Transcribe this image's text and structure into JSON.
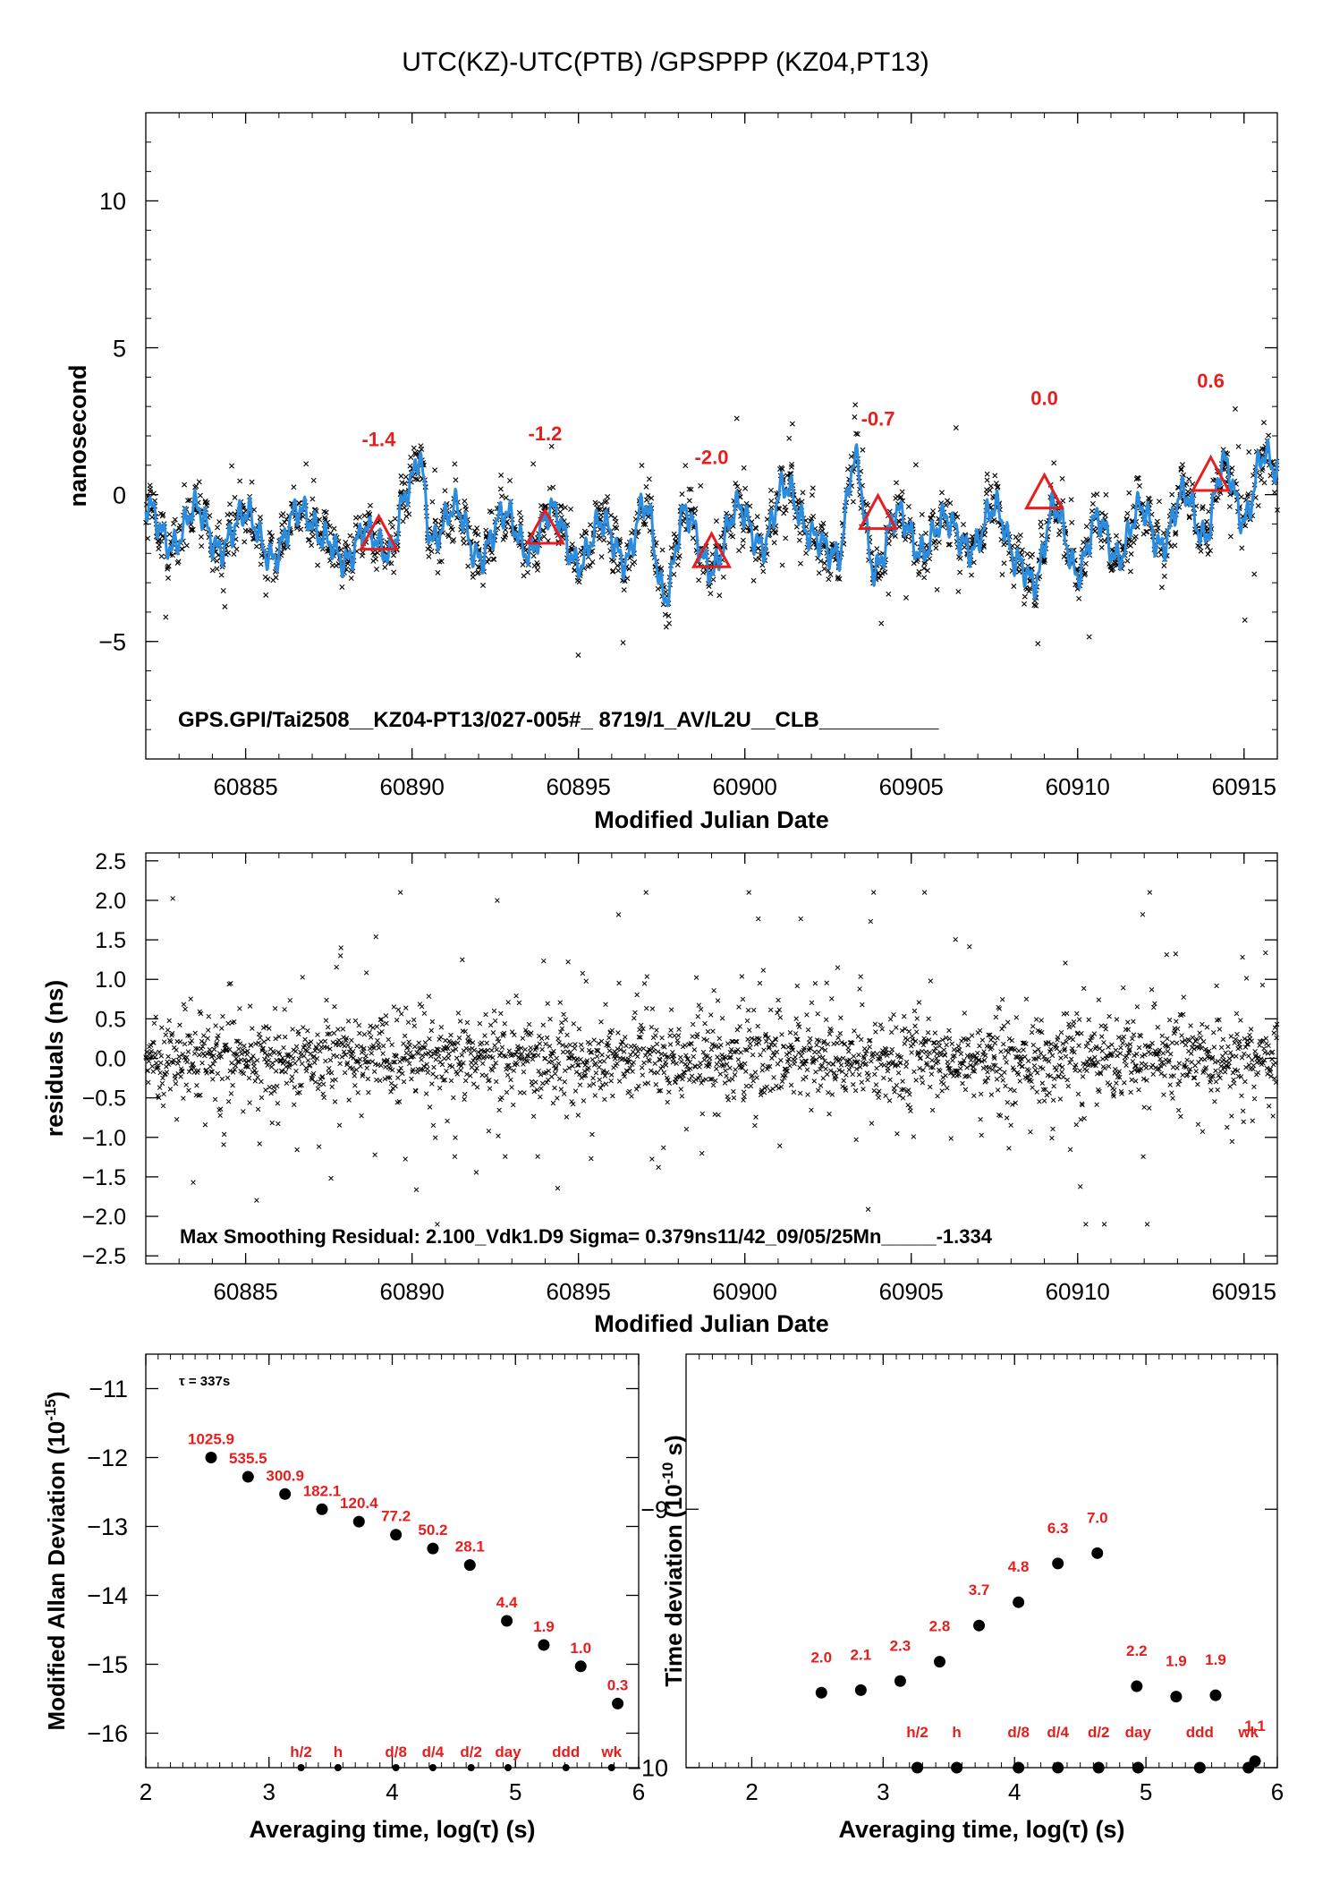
{
  "page_title": "UTC(KZ)-UTC(PTB)  /GPSPPP  (KZ04,PT13)",
  "colors": {
    "smooth": "#2a8de0",
    "marker": "#e61e1e",
    "points": "#000000"
  },
  "chart_data": [
    {
      "id": "top",
      "type": "scatter",
      "xlabel": "Modified Julian Date",
      "ylabel": "nanosecond",
      "xlim": [
        60882,
        60916
      ],
      "ylim": [
        -9,
        13
      ],
      "xticks": [
        60885,
        60890,
        60895,
        60900,
        60905,
        60910,
        60915
      ],
      "yticks": [
        -5,
        0,
        5,
        10
      ],
      "ytick_labels": [
        "−5",
        "0",
        "5",
        "10"
      ],
      "annotation": "GPS.GPI/Tai2508__KZ04-PT13/027-005#_  8719/1_AV/L2U__CLB__________",
      "triangles": [
        {
          "x": 60889,
          "y": -1.4,
          "label": "-1.4"
        },
        {
          "x": 60894,
          "y": -1.2,
          "label": "-1.2"
        },
        {
          "x": 60899,
          "y": -2.0,
          "label": "-2.0"
        },
        {
          "x": 60904,
          "y": -0.7,
          "label": "-0.7"
        },
        {
          "x": 60909,
          "y": 0.0,
          "label": "0.0"
        },
        {
          "x": 60914,
          "y": 0.6,
          "label": "0.6"
        }
      ],
      "smooth_anchors": [
        [
          60882,
          -0.3
        ],
        [
          60882.8,
          -1.8
        ],
        [
          60883.5,
          -0.4
        ],
        [
          60884.2,
          -1.9
        ],
        [
          60885,
          -0.6
        ],
        [
          60885.8,
          -2.2
        ],
        [
          60886.6,
          -0.5
        ],
        [
          60887.4,
          -1.5
        ],
        [
          60888,
          -2.3
        ],
        [
          60888.6,
          -1.2
        ],
        [
          60889.3,
          -2.0
        ],
        [
          60889.9,
          0.2
        ],
        [
          60890.2,
          1.3
        ],
        [
          60890.6,
          -1.6
        ],
        [
          60891.3,
          -0.4
        ],
        [
          60892,
          -2.2
        ],
        [
          60892.8,
          -0.6
        ],
        [
          60893.5,
          -2.0
        ],
        [
          60894.2,
          -0.5
        ],
        [
          60895,
          -2.4
        ],
        [
          60895.7,
          -0.9
        ],
        [
          60896.4,
          -2.3
        ],
        [
          60897,
          -0.3
        ],
        [
          60897.6,
          -3.5
        ],
        [
          60898.2,
          -0.6
        ],
        [
          60899,
          -2.6
        ],
        [
          60899.8,
          -0.4
        ],
        [
          60900.5,
          -1.8
        ],
        [
          60901.2,
          0.3
        ],
        [
          60902,
          -1.4
        ],
        [
          60902.8,
          -2.1
        ],
        [
          60903.3,
          1.2
        ],
        [
          60903.9,
          -2.6
        ],
        [
          60904.6,
          -0.6
        ],
        [
          60905.3,
          -2.0
        ],
        [
          60906,
          -0.8
        ],
        [
          60906.8,
          -1.9
        ],
        [
          60907.5,
          -0.4
        ],
        [
          60908.2,
          -2.3
        ],
        [
          60908.7,
          -3.0
        ],
        [
          60909.3,
          -0.4
        ],
        [
          60910,
          -2.7
        ],
        [
          60910.6,
          -0.8
        ],
        [
          60911.2,
          -2.2
        ],
        [
          60911.9,
          -0.4
        ],
        [
          60912.5,
          -1.8
        ],
        [
          60913.2,
          0.1
        ],
        [
          60913.8,
          -1.5
        ],
        [
          60914.4,
          1.1
        ],
        [
          60915,
          -0.9
        ],
        [
          60915.6,
          1.4
        ],
        [
          60916,
          0.8
        ]
      ]
    },
    {
      "id": "residuals",
      "type": "scatter",
      "xlabel": "Modified Julian Date",
      "ylabel": "residuals (ns)",
      "xlim": [
        60882,
        60916
      ],
      "ylim": [
        -2.6,
        2.6
      ],
      "xticks": [
        60885,
        60890,
        60895,
        60900,
        60905,
        60910,
        60915
      ],
      "yticks": [
        2.5,
        2.0,
        1.5,
        1.0,
        0.5,
        0.0,
        -0.5,
        -1.0,
        -1.5,
        -2.0,
        -2.5
      ],
      "ytick_labels": [
        "2.5",
        "2.0",
        "1.5",
        "1.0",
        "0.5",
        "0.0",
        "−0.5",
        "−1.0",
        "−1.5",
        "−2.0",
        "−2.5"
      ],
      "annotation": "Max Smoothing Residual: 2.100_Vdk1.D9  Sigma= 0.379ns11/42_09/05/25Mn_____-1.334"
    },
    {
      "id": "mdev",
      "type": "scatter",
      "xlabel": "Averaging time, log(τ) (s)",
      "ylabel": "Modified Allan Deviation (10",
      "ylabel_exp": "-15",
      "xlim": [
        2,
        6
      ],
      "ylim": [
        -16.5,
        -10.5
      ],
      "xticks": [
        2,
        3,
        4,
        5,
        6
      ],
      "yticks": [
        -11,
        -12,
        -13,
        -14,
        -15,
        -16
      ],
      "ytick_labels": [
        "−11",
        "−12",
        "−13",
        "−14",
        "−15",
        "−16"
      ],
      "tau_label": "τ = 337s",
      "points": [
        {
          "x": 2.53,
          "y": -12.0,
          "label": "1025.9"
        },
        {
          "x": 2.83,
          "y": -12.28,
          "label": "535.5"
        },
        {
          "x": 3.13,
          "y": -12.53,
          "label": "300.9"
        },
        {
          "x": 3.43,
          "y": -12.75,
          "label": "182.1"
        },
        {
          "x": 3.73,
          "y": -12.93,
          "label": "120.4"
        },
        {
          "x": 4.03,
          "y": -13.12,
          "label": "77.2"
        },
        {
          "x": 4.33,
          "y": -13.32,
          "label": "50.2"
        },
        {
          "x": 4.63,
          "y": -13.56,
          "label": "28.1"
        },
        {
          "x": 4.93,
          "y": -14.37,
          "label": "4.4"
        },
        {
          "x": 5.23,
          "y": -14.72,
          "label": "1.9"
        },
        {
          "x": 5.53,
          "y": -15.03,
          "label": "1.0"
        },
        {
          "x": 5.83,
          "y": -15.57,
          "label": "0.3"
        }
      ],
      "period_marks": [
        {
          "x": 3.26,
          "label": "h/2"
        },
        {
          "x": 3.56,
          "label": "h"
        },
        {
          "x": 4.03,
          "label": "d/8"
        },
        {
          "x": 4.33,
          "label": "d/4"
        },
        {
          "x": 4.64,
          "label": "d/2"
        },
        {
          "x": 4.94,
          "label": "day"
        },
        {
          "x": 5.41,
          "label": "ddd"
        },
        {
          "x": 5.78,
          "label": "wk"
        }
      ]
    },
    {
      "id": "tdev",
      "type": "scatter",
      "xlabel": "Averaging time, log(τ) (s)",
      "ylabel": "Time deviation (10",
      "ylabel_exp": "-10",
      "ylabel_tail": " s)",
      "xlim": [
        1.5,
        6.0
      ],
      "ylim": [
        -10.0,
        -8.4
      ],
      "xticks": [
        2,
        3,
        4,
        5,
        6
      ],
      "yticks": [
        -9,
        -10
      ],
      "ytick_labels": [
        "−9",
        "−10"
      ],
      "points": [
        {
          "x": 2.53,
          "y": -9.71,
          "label": "2.0"
        },
        {
          "x": 2.83,
          "y": -9.7,
          "label": "2.1"
        },
        {
          "x": 3.13,
          "y": -9.665,
          "label": "2.3"
        },
        {
          "x": 3.43,
          "y": -9.59,
          "label": "2.8"
        },
        {
          "x": 3.73,
          "y": -9.45,
          "label": "3.7"
        },
        {
          "x": 4.03,
          "y": -9.36,
          "label": "4.8"
        },
        {
          "x": 4.33,
          "y": -9.21,
          "label": "6.3"
        },
        {
          "x": 4.63,
          "y": -9.17,
          "label": "7.0"
        },
        {
          "x": 4.93,
          "y": -9.685,
          "label": "2.2"
        },
        {
          "x": 5.23,
          "y": -9.725,
          "label": "1.9"
        },
        {
          "x": 5.53,
          "y": -9.72,
          "label": "1.9"
        },
        {
          "x": 5.83,
          "y": -9.975,
          "label": "1.1"
        }
      ],
      "period_marks": [
        {
          "x": 3.26,
          "label": "h/2"
        },
        {
          "x": 3.56,
          "label": "h"
        },
        {
          "x": 4.03,
          "label": "d/8"
        },
        {
          "x": 4.33,
          "label": "d/4"
        },
        {
          "x": 4.64,
          "label": "d/2"
        },
        {
          "x": 4.94,
          "label": "day"
        },
        {
          "x": 5.41,
          "label": "ddd"
        },
        {
          "x": 5.78,
          "label": "wk"
        }
      ]
    }
  ]
}
